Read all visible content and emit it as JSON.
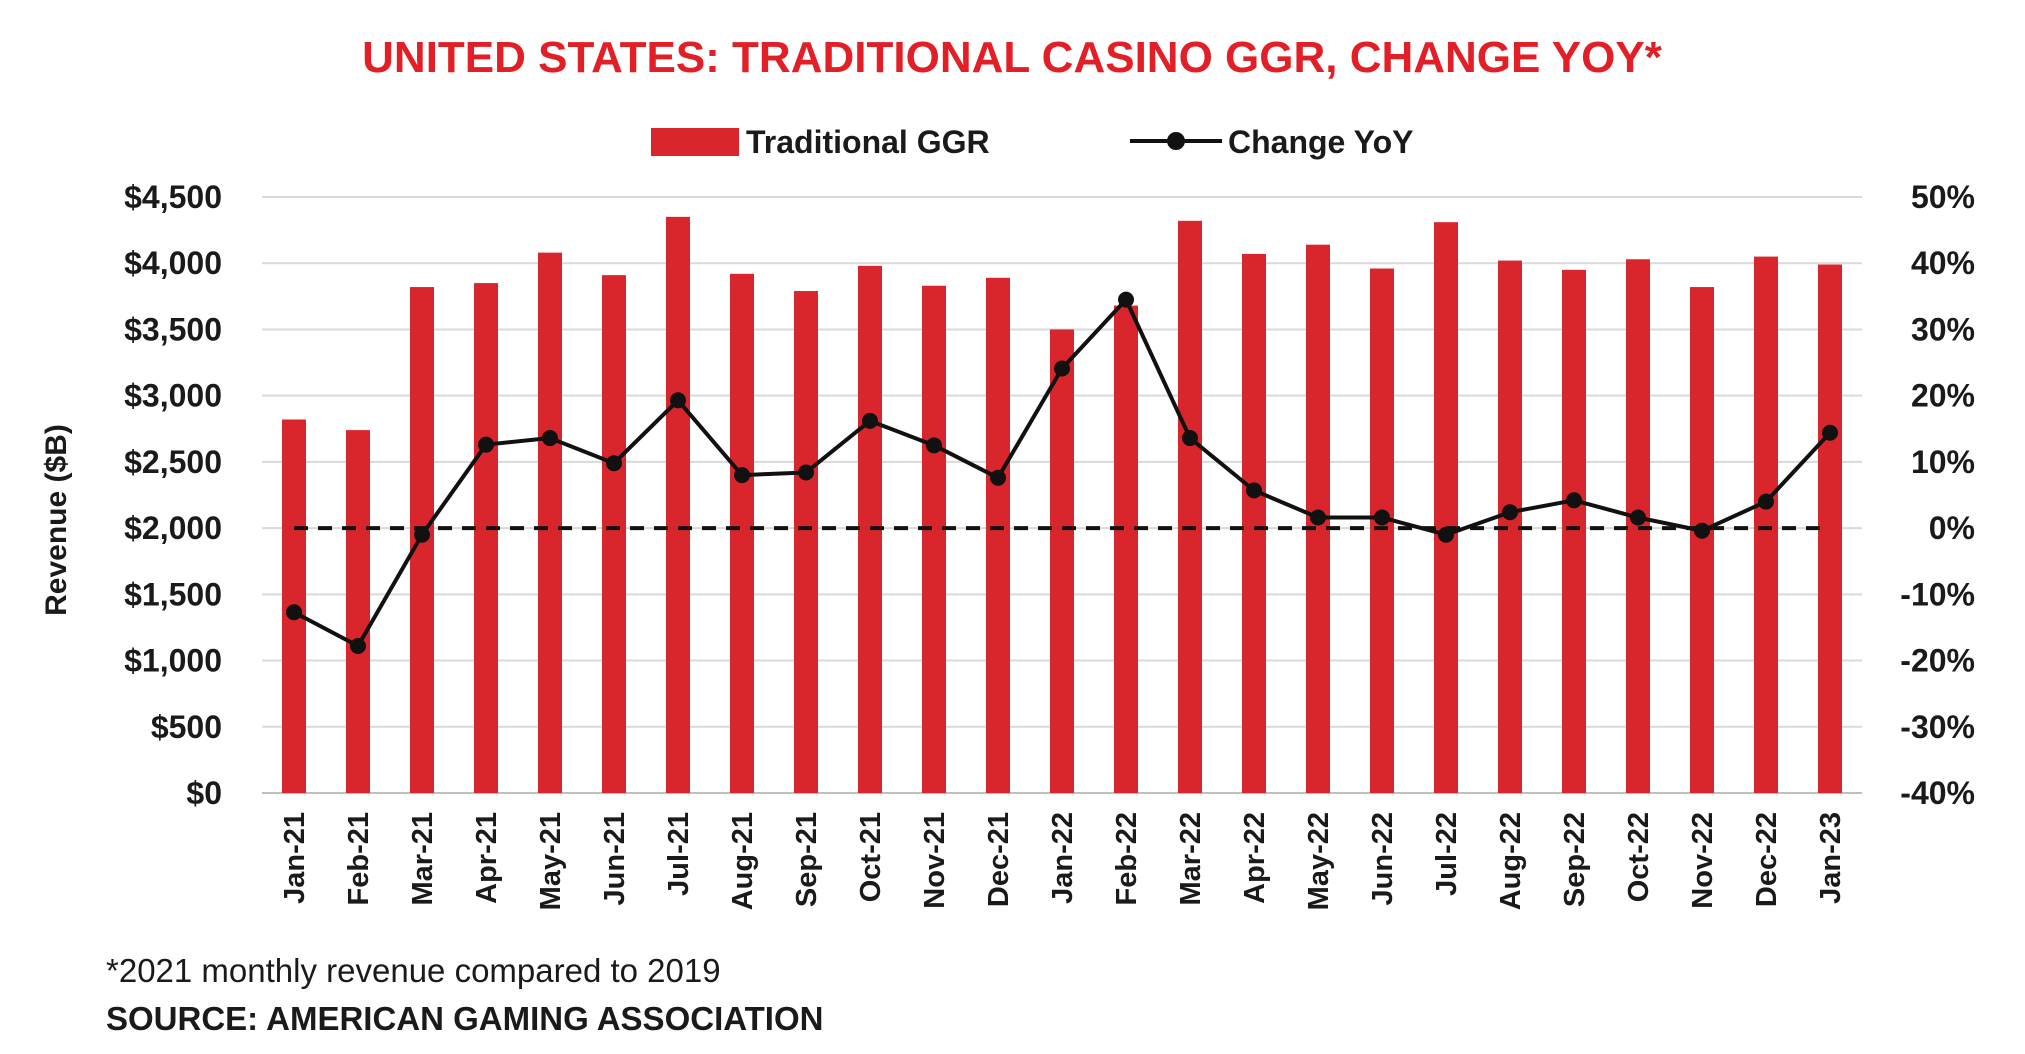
{
  "chart_data": {
    "type": "bar",
    "title": "UNITED STATES: TRADITIONAL CASINO GGR, CHANGE YOY*",
    "ylabel": "Revenue ($B)",
    "ylim": [
      0,
      4500
    ],
    "y2lim": [
      -40,
      50
    ],
    "yticks": [
      "$0",
      "$500",
      "$1,000",
      "$1,500",
      "$2,000",
      "$2,500",
      "$3,000",
      "$3,500",
      "$4,000",
      "$4,500"
    ],
    "y2ticks": [
      "-40%",
      "-30%",
      "-20%",
      "-10%",
      "0%",
      "10%",
      "20%",
      "30%",
      "40%",
      "50%"
    ],
    "grid": true,
    "legend_position": "top-center",
    "categories": [
      "Jan-21",
      "Feb-21",
      "Mar-21",
      "Apr-21",
      "May-21",
      "Jun-21",
      "Jul-21",
      "Aug-21",
      "Sep-21",
      "Oct-21",
      "Nov-21",
      "Dec-21",
      "Jan-22",
      "Feb-22",
      "Mar-22",
      "Apr-22",
      "May-22",
      "Jun-22",
      "Jul-22",
      "Aug-22",
      "Sep-22",
      "Oct-22",
      "Nov-22",
      "Dec-22",
      "Jan-23"
    ],
    "series": [
      {
        "name": "Traditional GGR",
        "type": "bar",
        "axis": "left",
        "color": "#d9262c",
        "values": [
          2820,
          2740,
          3820,
          3850,
          4080,
          3910,
          4350,
          3920,
          3790,
          3980,
          3830,
          3890,
          3500,
          3680,
          4320,
          4070,
          4140,
          3960,
          4310,
          4020,
          3950,
          4030,
          3820,
          4050,
          3990
        ]
      },
      {
        "name": "Change YoY",
        "type": "line",
        "axis": "right",
        "color": "#111111",
        "values": [
          -12.7,
          -17.8,
          -1.0,
          12.6,
          13.6,
          9.8,
          19.3,
          8.0,
          8.4,
          16.2,
          12.5,
          7.6,
          24.1,
          34.5,
          13.6,
          5.7,
          1.6,
          1.6,
          -1.0,
          2.4,
          4.2,
          1.6,
          -0.4,
          4.0,
          14.4
        ]
      }
    ],
    "reference_line": {
      "axis": "right",
      "value": 0,
      "style": "dashed"
    }
  },
  "footnote": "*2021 monthly revenue compared to 2019",
  "source": "SOURCE: AMERICAN GAMING ASSOCIATION"
}
